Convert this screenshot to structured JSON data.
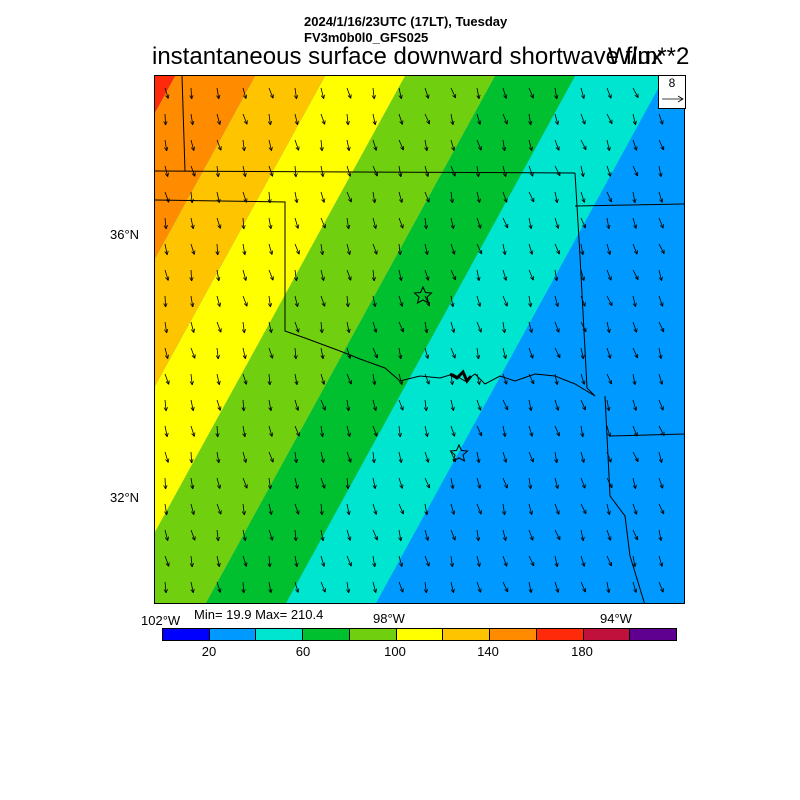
{
  "header": {
    "datetime": "2024/1/16/23UTC (17LT), Tuesday",
    "model": "FV3m0b0l0_GFS025"
  },
  "title": "instantaneous surface downward shortwave flux",
  "units": "W/m**2",
  "ref_vector": {
    "value": "8"
  },
  "axes": {
    "lat_labels": [
      "36°N",
      "32°N"
    ],
    "lon_labels": [
      "102°W",
      "98°W",
      "94°W"
    ]
  },
  "stats": {
    "text": "Min= 19.9 Max= 210.4"
  },
  "colorbar": {
    "colors": [
      "#0000ff",
      "#0099ff",
      "#00e5d0",
      "#00c030",
      "#70d010",
      "#ffff00",
      "#ffc400",
      "#ff8c00",
      "#ff2a0a",
      "#c0103c",
      "#600090"
    ],
    "labels": [
      "20",
      "60",
      "100",
      "140",
      "180"
    ]
  },
  "map": {
    "field_bands": [
      "#0099ff",
      "#00e5d0",
      "#00c030",
      "#70d010",
      "#ffff00",
      "#ffc400",
      "#ff8c00",
      "#ff2a0a",
      "#c0103c",
      "#600090"
    ],
    "markers": [
      "star-marker",
      "star-marker"
    ]
  }
}
